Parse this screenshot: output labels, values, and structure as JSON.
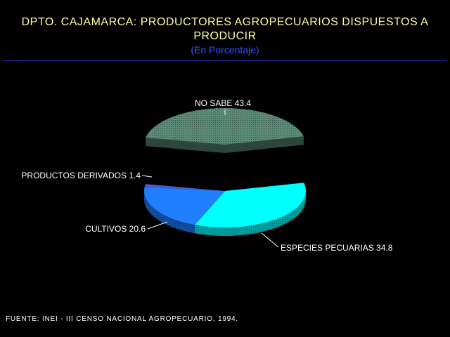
{
  "header": {
    "title_line1": "DPTO. CAJAMARCA: PRODUCTORES AGROPECUARIOS DISPUESTOS A",
    "title_line2": "PRODUCIR",
    "subtitle": "(En Porcentaje)"
  },
  "footer": {
    "source": "FUENTE: INEI - III CENSO NACIONAL AGROPECUARIO, 1994."
  },
  "chart_data": {
    "type": "pie",
    "three_d": true,
    "exploded_slice": "NO SABE",
    "title": "DPTO. CAJAMARCA: PRODUCTORES AGROPECUARIOS DISPUESTOS A PRODUCIR",
    "subtitle": "(En Porcentaje)",
    "legend": "none",
    "slices": [
      {
        "label": "NO SABE",
        "value": 43.4,
        "color": "#5b8a78"
      },
      {
        "label": "ESPECIES PECUARIAS",
        "value": 34.8,
        "color": "#00ffff"
      },
      {
        "label": "CULTIVOS",
        "value": 20.6,
        "color": "#1f7fff"
      },
      {
        "label": "PRODUCTOS DERIVADOS",
        "value": 1.4,
        "color": "#4a5ad0"
      }
    ]
  }
}
